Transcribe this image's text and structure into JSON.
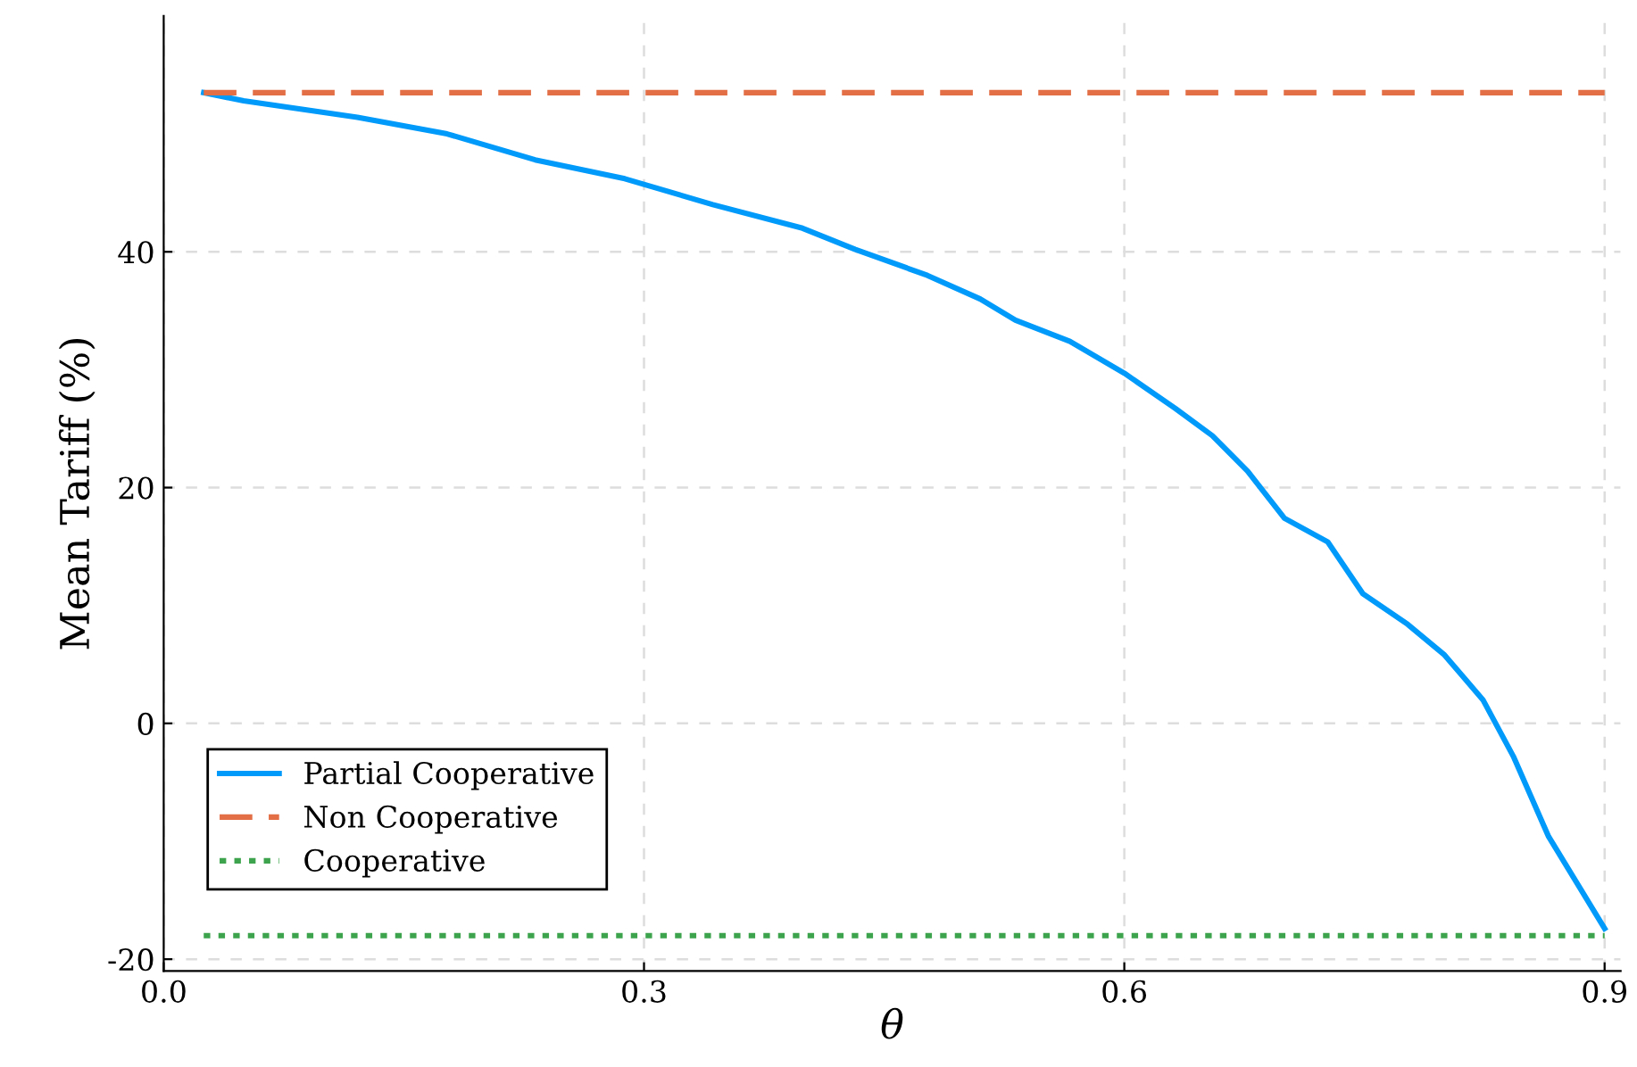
{
  "chart_data": {
    "type": "line",
    "xlabel": "θ",
    "ylabel": "Mean Tariff (%)",
    "xlim": [
      0,
      0.91
    ],
    "ylim": [
      -21,
      60
    ],
    "xticks": [
      {
        "value": 0,
        "label": "0.0"
      },
      {
        "value": 0.3,
        "label": "0.3"
      },
      {
        "value": 0.6,
        "label": "0.6"
      },
      {
        "value": 0.9,
        "label": "0.9"
      }
    ],
    "yticks": [
      -20,
      0,
      20,
      40
    ],
    "grid": true,
    "legend": "bottom left",
    "series": [
      {
        "name": "Partial Cooperative",
        "color": "#009afa",
        "line_style": "solid",
        "x": [
          0.025,
          0.05,
          0.121,
          0.177,
          0.232,
          0.288,
          0.343,
          0.399,
          0.432,
          0.477,
          0.51,
          0.532,
          0.566,
          0.6,
          0.632,
          0.655,
          0.677,
          0.7,
          0.727,
          0.749,
          0.777,
          0.8,
          0.824,
          0.843,
          0.865,
          0.9
        ],
        "values": [
          53.5,
          52.8,
          51.4,
          50,
          47.8,
          46.2,
          44,
          42,
          40.2,
          38,
          36,
          34.2,
          32.4,
          29.7,
          26.7,
          24.4,
          21.4,
          17.4,
          15.4,
          11,
          8.4,
          5.8,
          2,
          -2.8,
          -9.6,
          -17.4
        ]
      },
      {
        "name": "Non Cooperative",
        "color": "#e26f46",
        "line_style": "dashed",
        "x": [
          0.025,
          0.9
        ],
        "values": [
          53.5,
          53.5
        ]
      },
      {
        "name": "Cooperative",
        "color": "#3da44d",
        "line_style": "dotted",
        "x": [
          0.025,
          0.9
        ],
        "values": [
          -18,
          -18
        ]
      }
    ]
  }
}
